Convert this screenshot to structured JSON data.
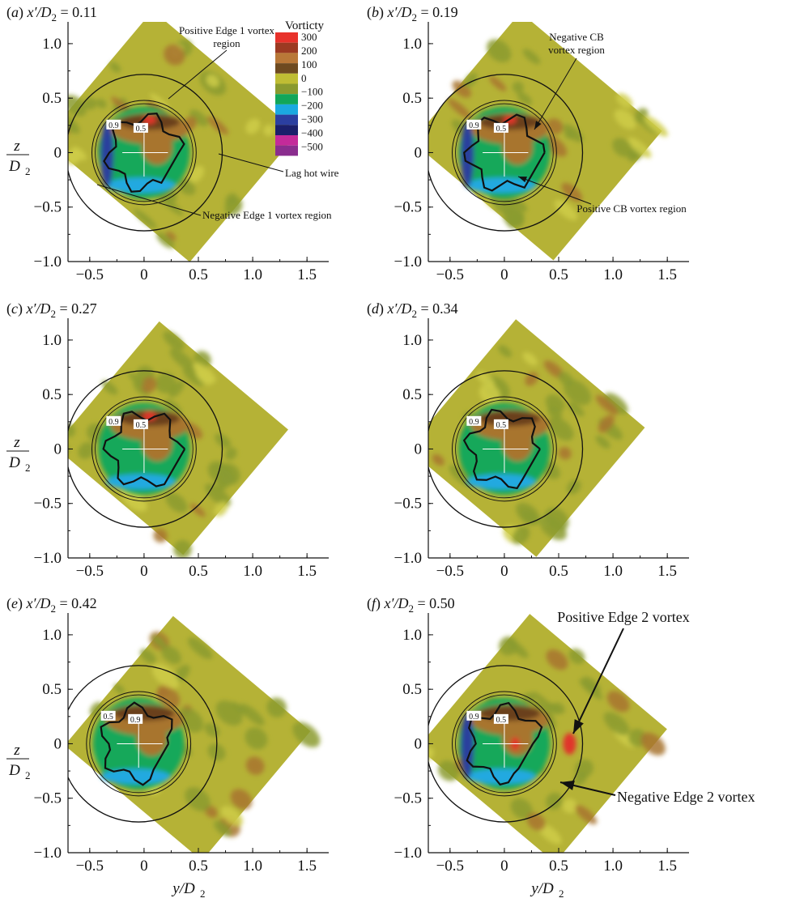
{
  "figure": {
    "colorbar_title": "Vorticty",
    "colorbar_levels": [
      "300",
      "200",
      "100",
      "0",
      "−100",
      "−200",
      "−300",
      "−400",
      "−500"
    ],
    "colorbar_colors": [
      "#e8322b",
      "#9c3a22",
      "#b97838",
      "#6e4a20",
      "#bfbd34",
      "#8a9a2f",
      "#12a65a",
      "#1ba9e0",
      "#2b3fa0",
      "#1b1f6b",
      "#c42a9a",
      "#8a2d8e"
    ],
    "colors": {
      "background_field": "#b5b236",
      "field_dark": "#8b9b30",
      "positive_mid": "#a8742e",
      "positive_dark": "#6b3f1a",
      "positive_red": "#e0362a",
      "negative_green": "#18a85a",
      "negative_cyan": "#21a9e0",
      "negative_blue": "#2b3f9d",
      "contour_line": "#111111"
    }
  },
  "chart_data": [
    {
      "type": "heatmap",
      "panel": "(a)",
      "title_prefix": "(a)",
      "title_var": "x′/D",
      "title_sub": "2",
      "title_value": "= 0.11",
      "x_ticks": [
        "−0.5",
        "0",
        "0.5",
        "1.0",
        "1.5"
      ],
      "y_ticks": [
        "1.0",
        "0.5",
        "0",
        "−0.5",
        "−1.0"
      ],
      "xlim": [
        -0.7,
        1.7
      ],
      "ylim": [
        -1.0,
        1.2
      ],
      "contour_levels_labeled": [
        "0.9",
        "0.5"
      ],
      "annotations": [
        "Positive Edge 1 vortex region",
        "Lag hot wire",
        "Negative Edge 1 vortex region"
      ]
    },
    {
      "type": "heatmap",
      "panel": "(b)",
      "title_prefix": "(b)",
      "title_var": "x′/D",
      "title_sub": "2",
      "title_value": "= 0.19",
      "x_ticks": [
        "−0.5",
        "0",
        "0.5",
        "1.0",
        "1.5"
      ],
      "y_ticks": [
        "1.0",
        "0.5",
        "0",
        "−0.5",
        "−1.0"
      ],
      "xlim": [
        -0.7,
        1.7
      ],
      "ylim": [
        -1.0,
        1.2
      ],
      "contour_levels_labeled": [
        "0.9",
        "0.5"
      ],
      "annotations": [
        "Negative CB vortex region",
        "Positive CB vortex region"
      ]
    },
    {
      "type": "heatmap",
      "panel": "(c)",
      "title_prefix": "(c)",
      "title_var": "x′/D",
      "title_sub": "2",
      "title_value": "= 0.27",
      "x_ticks": [
        "−0.5",
        "0",
        "0.5",
        "1.0",
        "1.5"
      ],
      "y_ticks": [
        "1.0",
        "0.5",
        "0",
        "−0.5",
        "−1.0"
      ],
      "xlim": [
        -0.7,
        1.7
      ],
      "ylim": [
        -1.0,
        1.2
      ],
      "contour_levels_labeled": [
        "0.9",
        "0.5"
      ],
      "annotations": []
    },
    {
      "type": "heatmap",
      "panel": "(d)",
      "title_prefix": "(d)",
      "title_var": "x′/D",
      "title_sub": "2",
      "title_value": "= 0.34",
      "x_ticks": [
        "−0.5",
        "0",
        "0.5",
        "1.0",
        "1.5"
      ],
      "y_ticks": [
        "1.0",
        "0.5",
        "0",
        "−0.5",
        "−1.0"
      ],
      "xlim": [
        -0.7,
        1.7
      ],
      "ylim": [
        -1.0,
        1.2
      ],
      "contour_levels_labeled": [
        "0.9",
        "0.5"
      ],
      "annotations": []
    },
    {
      "type": "heatmap",
      "panel": "(e)",
      "title_prefix": "(e)",
      "title_var": "x′/D",
      "title_sub": "2",
      "title_value": "= 0.42",
      "x_ticks": [
        "−0.5",
        "0",
        "0.5",
        "1.0",
        "1.5"
      ],
      "y_ticks": [
        "1.0",
        "0.5",
        "0",
        "−0.5",
        "−1.0"
      ],
      "xlim": [
        -0.7,
        1.7
      ],
      "ylim": [
        -1.0,
        1.2
      ],
      "contour_levels_labeled": [
        "0.5",
        "0.9"
      ],
      "annotations": []
    },
    {
      "type": "heatmap",
      "panel": "(f)",
      "title_prefix": "(f)",
      "title_var": "x′/D",
      "title_sub": "2",
      "title_value": "= 0.50",
      "x_ticks": [
        "−0.5",
        "0",
        "0.5",
        "1.0",
        "1.5"
      ],
      "y_ticks": [
        "1.0",
        "0.5",
        "0",
        "−0.5",
        "−1.0"
      ],
      "xlim": [
        -0.7,
        1.7
      ],
      "ylim": [
        -1.0,
        1.2
      ],
      "contour_levels_labeled": [
        "0.9",
        "0.5"
      ],
      "annotations": [
        "Positive Edge 2 vortex",
        "Negative Edge 2 vortex"
      ]
    }
  ],
  "axes": {
    "ylabel_top": "z",
    "ylabel_bottom": "D",
    "ylabel_sub": "2",
    "xlabel_var": "y/D",
    "xlabel_sub": "2"
  }
}
